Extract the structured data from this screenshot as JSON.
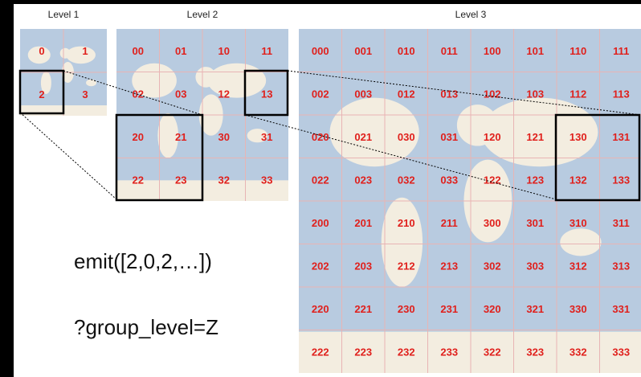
{
  "levels": [
    {
      "label": "Level 1",
      "rows": [
        [
          "0",
          "1"
        ],
        [
          "2",
          "3"
        ]
      ]
    },
    {
      "label": "Level 2",
      "rows": [
        [
          "00",
          "01",
          "10",
          "11"
        ],
        [
          "02",
          "03",
          "12",
          "13"
        ],
        [
          "20",
          "21",
          "30",
          "31"
        ],
        [
          "22",
          "23",
          "32",
          "33"
        ]
      ]
    },
    {
      "label": "Level 3",
      "rows": [
        [
          "000",
          "001",
          "010",
          "011",
          "100",
          "101",
          "110",
          "111"
        ],
        [
          "002",
          "003",
          "012",
          "013",
          "102",
          "103",
          "112",
          "113"
        ],
        [
          "020",
          "021",
          "030",
          "031",
          "120",
          "121",
          "130",
          "131"
        ],
        [
          "022",
          "023",
          "032",
          "033",
          "122",
          "123",
          "132",
          "133"
        ],
        [
          "200",
          "201",
          "210",
          "211",
          "300",
          "301",
          "310",
          "311"
        ],
        [
          "202",
          "203",
          "212",
          "213",
          "302",
          "303",
          "312",
          "313"
        ],
        [
          "220",
          "221",
          "230",
          "231",
          "320",
          "321",
          "330",
          "331"
        ],
        [
          "222",
          "223",
          "232",
          "233",
          "322",
          "323",
          "332",
          "333"
        ]
      ]
    }
  ],
  "code": {
    "emit": "emit([2,0,2,…])",
    "query": "?group_level=Z"
  }
}
